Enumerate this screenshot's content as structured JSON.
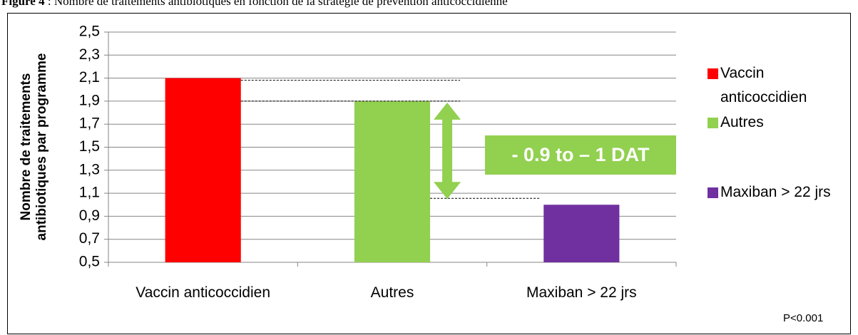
{
  "chart_data": {
    "type": "bar",
    "figure_label": "Figure 4",
    "title": " : Nombre de traitements antibiotiques en fonction de la stratégie de prévention anticoccidienne",
    "y_label": "Nombre de traitements antibiotiques par programme",
    "categories": [
      "Vaccin anticoccidien",
      "Autres",
      "Maxiban > 22 jrs"
    ],
    "values": [
      2.1,
      1.9,
      1.0
    ],
    "colors": [
      "#ff0000",
      "#92d050",
      "#7030a0"
    ],
    "ylim": [
      0.5,
      2.5
    ],
    "yticks": [
      {
        "value": 0.5,
        "label": "0,5"
      },
      {
        "value": 0.7,
        "label": "0,7"
      },
      {
        "value": 0.9,
        "label": "0,9"
      },
      {
        "value": 1.1,
        "label": "1,1"
      },
      {
        "value": 1.3,
        "label": "1,3"
      },
      {
        "value": 1.5,
        "label": "1,5"
      },
      {
        "value": 1.7,
        "label": "1,7"
      },
      {
        "value": 1.9,
        "label": "1,9"
      },
      {
        "value": 2.1,
        "label": "2,1"
      },
      {
        "value": 2.3,
        "label": "2,3"
      },
      {
        "value": 2.5,
        "label": "2,5"
      }
    ],
    "grid": true,
    "legend": "right",
    "annotation": "- 0.9 to – 1 DAT",
    "note": "P<0.001"
  }
}
